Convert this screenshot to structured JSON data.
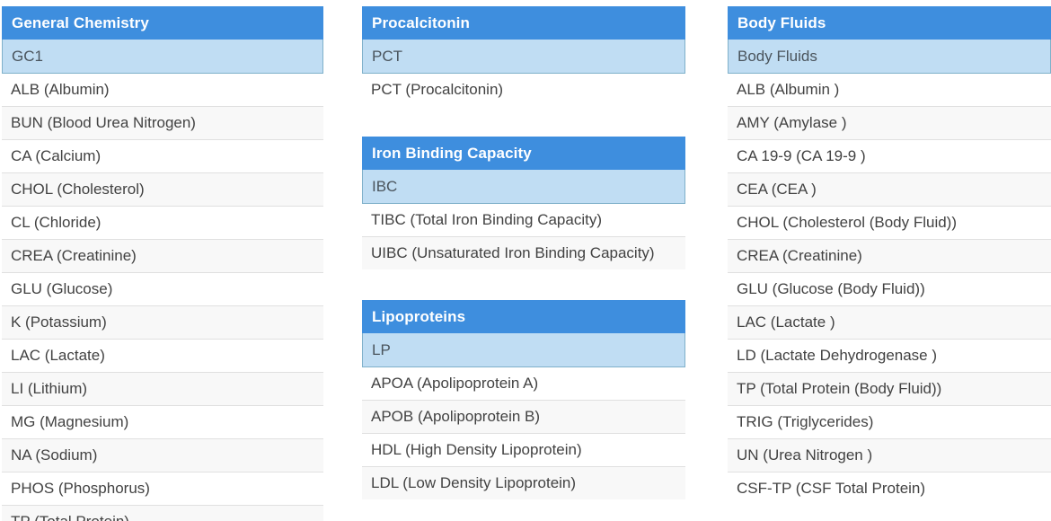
{
  "page": {
    "background": "#ffffff"
  },
  "colors": {
    "group_header_bg": "#3E8EDE",
    "group_header_text": "#FFFFFF",
    "selected_row_bg": "#C0DDF3",
    "selected_row_border": "#7FB0CA",
    "row_stripe_bg": "#F8F8F8",
    "row_divider": "#E0E0E0",
    "row_text": "#424242"
  },
  "groups": [
    {
      "title": "General Chemistry",
      "selected_panel": "GC1",
      "column": 1,
      "items": [
        "ALB (Albumin)",
        "BUN (Blood Urea Nitrogen)",
        "CA (Calcium)",
        "CHOL (Cholesterol)",
        "CL (Chloride)",
        "CREA (Creatinine)",
        "GLU (Glucose)",
        "K (Potassium)",
        "LAC (Lactate)",
        "LI (Lithium)",
        "MG (Magnesium)",
        "NA (Sodium)",
        "PHOS (Phosphorus)",
        "TP (Total Protein)"
      ]
    },
    {
      "title": "Procalcitonin",
      "selected_panel": "PCT",
      "column": 2,
      "items": [
        "PCT (Procalcitonin)"
      ]
    },
    {
      "title": "Iron Binding Capacity",
      "selected_panel": "IBC",
      "column": 2,
      "items": [
        "TIBC (Total Iron Binding Capacity)",
        "UIBC (Unsaturated Iron Binding Capacity)"
      ]
    },
    {
      "title": "Lipoproteins",
      "selected_panel": "LP",
      "column": 2,
      "items": [
        "APOA (Apolipoprotein A)",
        "APOB (Apolipoprotein B)",
        "HDL (High Density Lipoprotein)",
        "LDL (Low Density Lipoprotein)"
      ]
    },
    {
      "title": "Body Fluids",
      "selected_panel": "Body Fluids",
      "column": 3,
      "items": [
        "ALB (Albumin )",
        "AMY (Amylase )",
        "CA 19-9 (CA 19-9 )",
        "CEA (CEA )",
        "CHOL (Cholesterol (Body Fluid))",
        "CREA (Creatinine)",
        "GLU (Glucose (Body Fluid))",
        "LAC (Lactate )",
        "LD (Lactate Dehydrogenase )",
        "TP (Total Protein (Body Fluid))",
        "TRIG (Triglycerides)",
        "UN (Urea Nitrogen )",
        "CSF-TP (CSF Total Protein)"
      ]
    }
  ]
}
